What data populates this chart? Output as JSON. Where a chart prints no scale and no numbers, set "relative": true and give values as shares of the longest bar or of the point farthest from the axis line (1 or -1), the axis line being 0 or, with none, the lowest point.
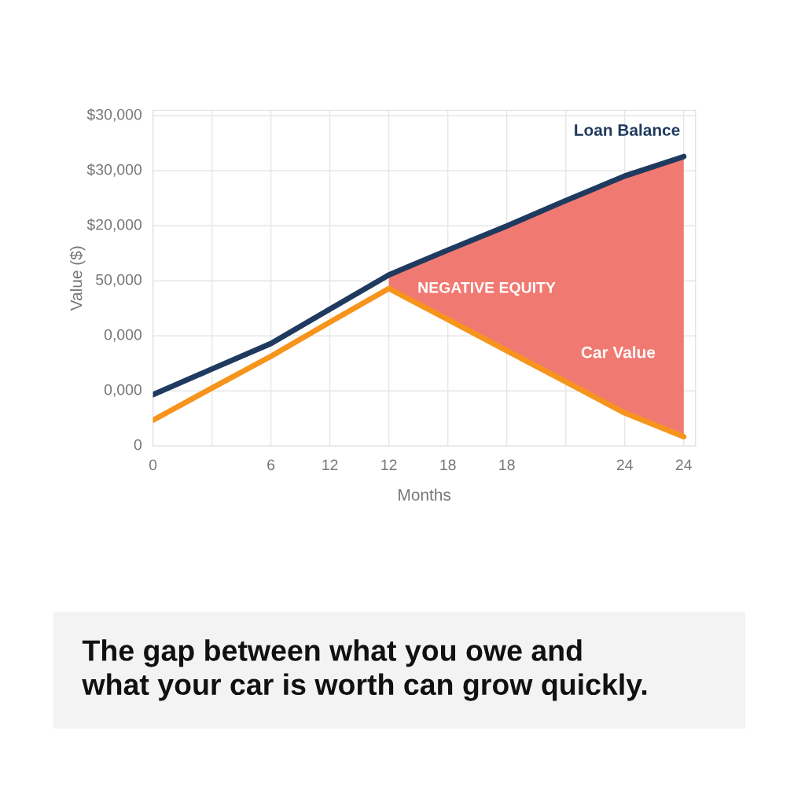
{
  "chart_data": {
    "type": "line",
    "relative": true,
    "xlabel": "Months",
    "ylabel": "Value ($)",
    "categories": [
      "0",
      null,
      "6",
      "12",
      "12",
      "18",
      "18",
      null,
      "24",
      "24"
    ],
    "grid": true,
    "marker": "none",
    "line_style": "solid",
    "series": [
      {
        "name": "Loan Balance",
        "color": "#1f3a5f",
        "values": [
          0.177,
          0.266,
          0.354,
          0.473,
          0.591,
          0.677,
          0.76,
          0.848,
          0.933,
          1
        ]
      },
      {
        "name": "Car Value",
        "color": "#f7941d",
        "values": [
          0.089,
          0.2,
          0.31,
          0.428,
          0.544,
          0.437,
          0.329,
          0.222,
          0.114,
          0.032
        ]
      },
      {
        "type": "area",
        "color": "#f07a72",
        "values": [
          null,
          null,
          null,
          null,
          0.591,
          0.677,
          0.76,
          0.848,
          0.933,
          1
        ]
      }
    ],
    "annotations": [
      "$30,000",
      "$30,000",
      "$20,000",
      "50,000",
      "0,000",
      "0,000",
      "0",
      "NEGATIVE EQUITY",
      "The gap between what you owe and\nwhat your car is worth can grow quickly."
    ]
  }
}
